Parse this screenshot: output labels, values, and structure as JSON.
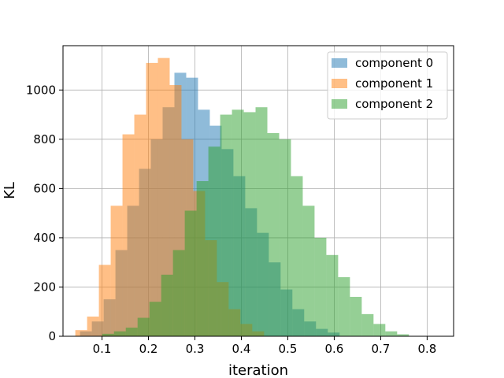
{
  "chart_data": {
    "type": "bar",
    "title": "",
    "xlabel": "iteration",
    "ylabel": "KL",
    "xlim": [
      0.016,
      0.857
    ],
    "ylim": [
      0,
      1180
    ],
    "xticks": [
      "0.1",
      "0.2",
      "0.3",
      "0.4",
      "0.5",
      "0.6",
      "0.7",
      "0.8"
    ],
    "xtick_values": [
      0.1,
      0.2,
      0.3,
      0.4,
      0.5,
      0.6,
      0.7,
      0.8
    ],
    "yticks": [
      "0",
      "200",
      "400",
      "600",
      "800",
      "1000"
    ],
    "ytick_values": [
      0,
      200,
      400,
      600,
      800,
      1000
    ],
    "grid": true,
    "legend_position": "top-right",
    "bin_width": 0.0254,
    "series": [
      {
        "name": "component 0",
        "color": "#1f77b4",
        "opacity": 0.5,
        "bin_start": 0.0527,
        "counts": [
          20,
          60,
          150,
          350,
          530,
          680,
          800,
          930,
          1070,
          1050,
          920,
          855,
          760,
          650,
          520,
          420,
          300,
          190,
          110,
          60,
          30,
          15
        ]
      },
      {
        "name": "component 1",
        "color": "#ff7f0e",
        "opacity": 0.5,
        "bin_start": 0.0425,
        "counts": [
          25,
          80,
          290,
          530,
          820,
          900,
          1110,
          1130,
          1020,
          800,
          590,
          390,
          220,
          110,
          50,
          20
        ]
      },
      {
        "name": "component 2",
        "color": "#2ca02c",
        "opacity": 0.5,
        "bin_start": 0.1004,
        "counts": [
          10,
          20,
          35,
          75,
          140,
          250,
          350,
          510,
          630,
          770,
          900,
          920,
          910,
          930,
          825,
          800,
          650,
          530,
          400,
          330,
          240,
          160,
          90,
          50,
          20,
          8
        ]
      }
    ]
  }
}
